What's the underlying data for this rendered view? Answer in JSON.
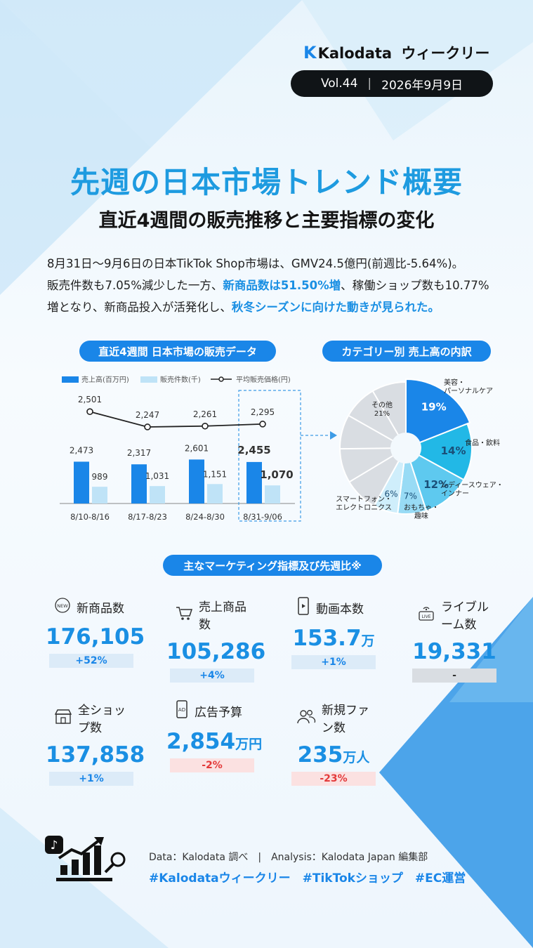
{
  "header": {
    "brand_name": "Kalodata",
    "brand_suffix": "ウィークリー",
    "volume": "Vol.44",
    "date": "2026年9月9日"
  },
  "title": "先週の日本市場トレンド概要",
  "subtitle": "直近4週間の販売推移と主要指標の変化",
  "intro": {
    "line1": "8月31日～9月6日の日本TikTok Shop市場は、GMV24.5億円(前週比-5.64%)。",
    "line2_a": "販売件数も7.05%減少した一方、",
    "line2_hl": "新商品数は51.50%増",
    "line2_b": "、稼働ショップ数も10.77%",
    "line3_a": "増となり、新商品投入が活発化し、",
    "line3_hl": "秋冬シーズンに向けた動きが見られた。"
  },
  "sales_section_title": "直近4週間 日本市場の販売データ",
  "category_section_title": "カテゴリー別 売上高の内訳",
  "marketing_section_title": "主なマーケティング指標及び先週比※",
  "colors": {
    "accent": "#1a86e8",
    "sales_bar": "#1a86e8",
    "count_bar": "#bfe3f7",
    "down": "#e33a3a",
    "pie_beauty": "#1a86e8",
    "pie_food": "#22b8e6",
    "pie_ladies": "#5ec9ef",
    "pie_toys": "#98dbf5",
    "pie_phone": "#cfeefb",
    "pie_other": "#d9dde2"
  },
  "chart_data": [
    {
      "type": "bar",
      "legend": [
        "売上高(百万円)",
        "販売件数(千)",
        "平均販売価格(円)"
      ],
      "categories": [
        "8/10-8/16",
        "8/17-8/23",
        "8/24-8/30",
        "8/31-9/06"
      ],
      "series": [
        {
          "name": "売上高(百万円)",
          "values": [
            2473,
            2317,
            2601,
            2455
          ],
          "labels": [
            "2,473",
            "2,317",
            "2,601",
            "2,455"
          ]
        },
        {
          "name": "販売件数(千)",
          "values": [
            989,
            1031,
            1151,
            1070
          ],
          "labels": [
            "989",
            "1,031",
            "1,151",
            "1,070"
          ]
        },
        {
          "name": "平均販売価格(円)",
          "type": "line",
          "values": [
            2501,
            2247,
            2261,
            2295
          ],
          "labels": [
            "2,501",
            "2,247",
            "2,261",
            "2,295"
          ]
        }
      ],
      "highlight_category": "8/31-9/06"
    },
    {
      "type": "pie",
      "slices": [
        {
          "label": "美容・パーソナルケア",
          "label_lines": [
            "美容・",
            "パーソナルケア"
          ],
          "value": 19,
          "value_label": "19%"
        },
        {
          "label": "食品・飲料",
          "label_lines": [
            "食品・飲料"
          ],
          "value": 14,
          "value_label": "14%"
        },
        {
          "label": "レディースウェア・インナー",
          "label_lines": [
            "レディースウェア・",
            "インナー"
          ],
          "value": 12,
          "value_label": "12%"
        },
        {
          "label": "おもちゃ・趣味",
          "label_lines": [
            "おもちゃ・",
            "趣味"
          ],
          "value": 7,
          "value_label": "7%"
        },
        {
          "label": "スマートフォン・エレクトロニクス",
          "label_lines": [
            "スマートフォン・",
            "エレクトロニクス"
          ],
          "value": 6,
          "value_label": "6%"
        },
        {
          "label": "その他",
          "label_lines": [
            "その他",
            "21%"
          ],
          "value": 21,
          "value_label": ""
        }
      ]
    }
  ],
  "metrics": [
    {
      "label": "新商品数",
      "icon": "new-badge-icon",
      "value": "176,105",
      "unit": "",
      "change": "+52%",
      "trend": "up"
    },
    {
      "label": "売上商品数",
      "icon": "cart-icon",
      "value": "105,286",
      "unit": "",
      "change": "+4%",
      "trend": "up"
    },
    {
      "label": "動画本数",
      "icon": "phone-video-icon",
      "value": "153.7",
      "unit": "万",
      "change": "+1%",
      "trend": "up"
    },
    {
      "label": "ライブルーム数",
      "icon": "live-icon",
      "value": "19,331",
      "unit": "",
      "change": "-",
      "trend": "none"
    },
    {
      "label": "全ショップ数",
      "icon": "shop-icon",
      "value": "137,858",
      "unit": "",
      "change": "+1%",
      "trend": "up"
    },
    {
      "label": "広告予算",
      "icon": "ad-phone-icon",
      "value": "2,854",
      "unit": "万円",
      "change": "-2%",
      "trend": "down"
    },
    {
      "label": "新規ファン数",
      "icon": "users-icon",
      "value": "235",
      "unit": "万人",
      "change": "-23%",
      "trend": "down"
    }
  ],
  "footer": {
    "data_line": "Data：Kalodata 調べ　|　Analysis：Kalodata Japan 編集部",
    "tags": "#Kalodataウィークリー　#TikTokショップ　#EC運営"
  }
}
